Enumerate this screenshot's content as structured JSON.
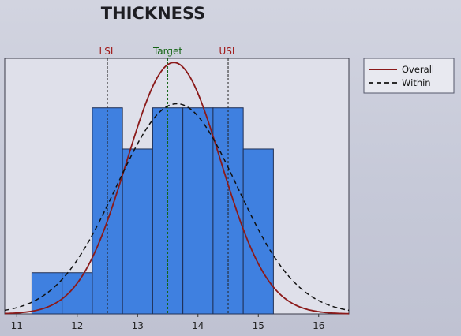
{
  "chart_data": {
    "type": "bar",
    "title": "THICKNESS",
    "xlabel": "",
    "ylabel": "",
    "xlim": [
      10.8,
      16.5
    ],
    "ylim": [
      0,
      6.2
    ],
    "xticks": [
      "11",
      "12",
      "13",
      "14",
      "15",
      "16"
    ],
    "histogram": {
      "bin_edges": [
        11.25,
        11.75,
        12.25,
        12.75,
        13.25,
        13.75,
        14.25,
        14.75,
        15.25
      ],
      "counts": [
        1,
        1,
        5,
        4,
        5,
        5,
        5,
        4
      ],
      "color": "#3f80e0"
    },
    "spec_limits": [
      {
        "label": "LSL",
        "value": 12.5,
        "color": "#a01818"
      },
      {
        "label": "Target",
        "value": 13.5,
        "color": "#146414"
      },
      {
        "label": "USL",
        "value": 14.5,
        "color": "#a01818"
      }
    ],
    "curves": [
      {
        "name": "Overall",
        "mean": 13.6,
        "sd": 0.78,
        "peak": 6.1,
        "style": "solid",
        "color": "#8b1a1a"
      },
      {
        "name": "Within",
        "mean": 13.65,
        "sd": 1.0,
        "peak": 5.1,
        "style": "dashed",
        "color": "#111111"
      }
    ],
    "legend": {
      "position": "top-right",
      "items": [
        "Overall",
        "Within"
      ]
    },
    "grid": false
  }
}
